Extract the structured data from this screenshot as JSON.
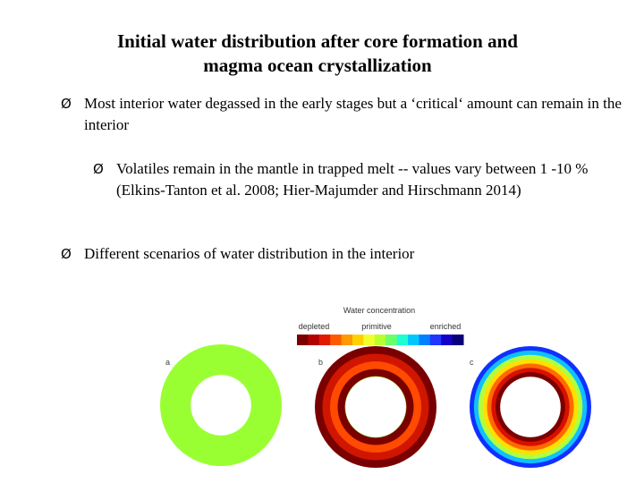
{
  "title": {
    "line1": "Initial water distribution after core formation and",
    "line2": "magma ocean crystallization"
  },
  "bullets": [
    {
      "marker": "Ø",
      "text": "Most interior water degassed in the early stages but a ‘critical‘ amount can remain in the interior"
    },
    {
      "marker": "Ø",
      "text": "Volatiles remain in the mantle in trapped melt -- values vary between 1 -10 % (Elkins-Tanton et al. 2008; Hier-Majumder and Hirschmann 2014)"
    },
    {
      "marker": "Ø",
      "text": "Different scenarios of water distribution in the interior"
    }
  ],
  "figure": {
    "colorbar_title": "Water concentration",
    "colorbar_labels": {
      "left": "depleted",
      "middle": "primitive",
      "right": "enriched"
    },
    "colorbar_colors": [
      "#7a0000",
      "#b40000",
      "#e01b00",
      "#ff5a00",
      "#ff9a00",
      "#ffd000",
      "#f2ff2a",
      "#b8ff30",
      "#6cff6a",
      "#20ffd0",
      "#00c8ff",
      "#0080ff",
      "#2036ff",
      "#1400c8",
      "#0a0078"
    ],
    "panels": [
      {
        "label": "a",
        "rings": [
          "#99ff33"
        ],
        "inner": "#99ff33"
      },
      {
        "label": "b",
        "rings": [
          "#7a0000",
          "#d01500",
          "#ff4a00",
          "#7a0000"
        ],
        "inner": "#99ff33"
      },
      {
        "label": "c",
        "rings": [
          "#1030ff",
          "#10c0ff",
          "#b0ff40",
          "#ffe000",
          "#ff6a00",
          "#d81000",
          "#7a0000"
        ],
        "inner": "#7a0000"
      }
    ]
  }
}
